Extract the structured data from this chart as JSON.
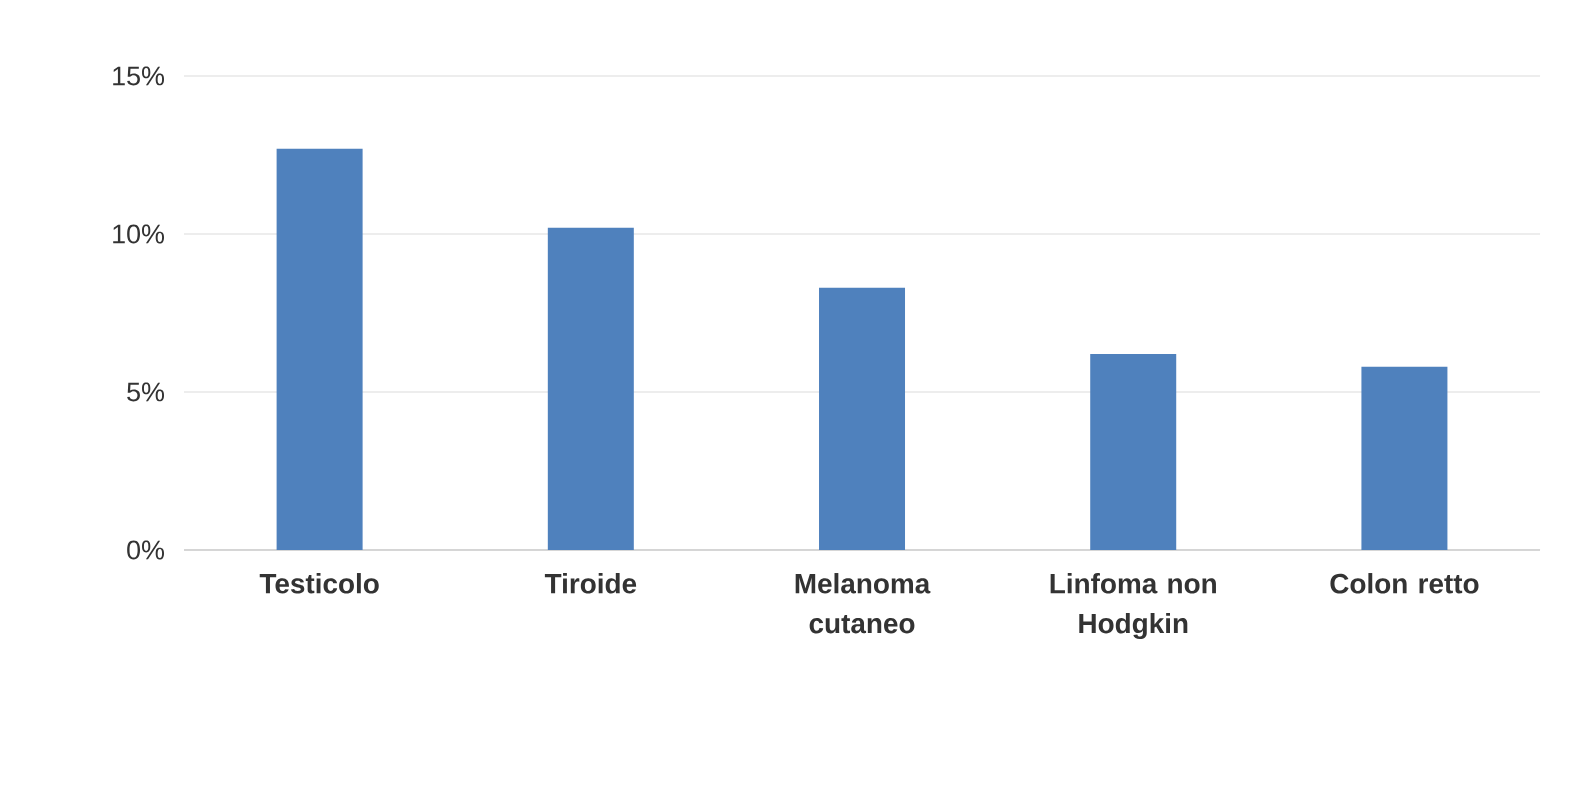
{
  "chart_data": {
    "type": "bar",
    "categories": [
      "Testicolo",
      "Tiroide",
      "Melanoma cutaneo",
      "Linfoma non Hodgkin",
      "Colon retto"
    ],
    "values": [
      12.7,
      10.2,
      8.3,
      6.2,
      5.8
    ],
    "color": "#4f81bd",
    "ylim": [
      0,
      15
    ],
    "yticks": [
      {
        "value": 0,
        "label": "0%"
      },
      {
        "value": 5,
        "label": "5%"
      },
      {
        "value": 10,
        "label": "10%"
      },
      {
        "value": 15,
        "label": "15%"
      }
    ],
    "grid": "y"
  }
}
